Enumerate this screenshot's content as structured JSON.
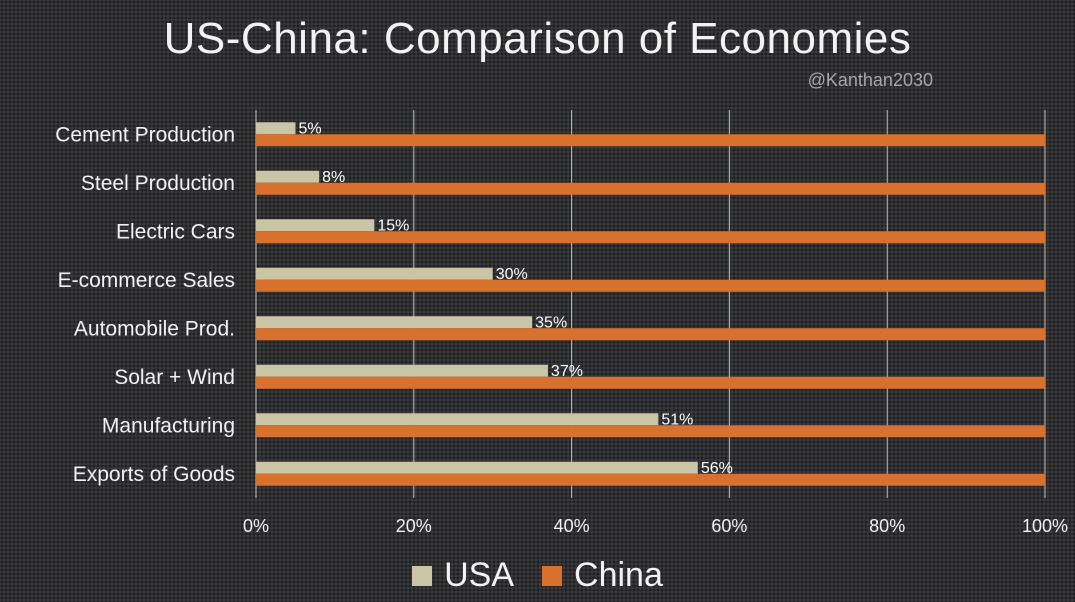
{
  "title": "US-China: Comparison of Economies",
  "handle": "@Kanthan2030",
  "colors": {
    "usa": "#c9c5a6",
    "china": "#d9712e",
    "grid": "#d9d9d9",
    "text": "#f2f2f2"
  },
  "chart_data": {
    "type": "bar",
    "orientation": "horizontal",
    "categories": [
      "Cement Production",
      "Steel Production",
      "Electric Cars",
      "E-commerce Sales",
      "Automobile Prod.",
      "Solar + Wind",
      "Manufacturing",
      "Exports of Goods"
    ],
    "series": [
      {
        "name": "USA",
        "values": [
          5,
          8,
          15,
          30,
          35,
          37,
          51,
          56
        ],
        "labels": [
          "5%",
          "8%",
          "15%",
          "30%",
          "35%",
          "37%",
          "51%",
          "56%"
        ]
      },
      {
        "name": "China",
        "values": [
          100,
          100,
          100,
          100,
          100,
          100,
          100,
          100
        ]
      }
    ],
    "xlim": [
      0,
      100
    ],
    "xticks": [
      "0%",
      "20%",
      "40%",
      "60%",
      "80%",
      "100%"
    ],
    "grid": true,
    "legend": "bottom"
  }
}
